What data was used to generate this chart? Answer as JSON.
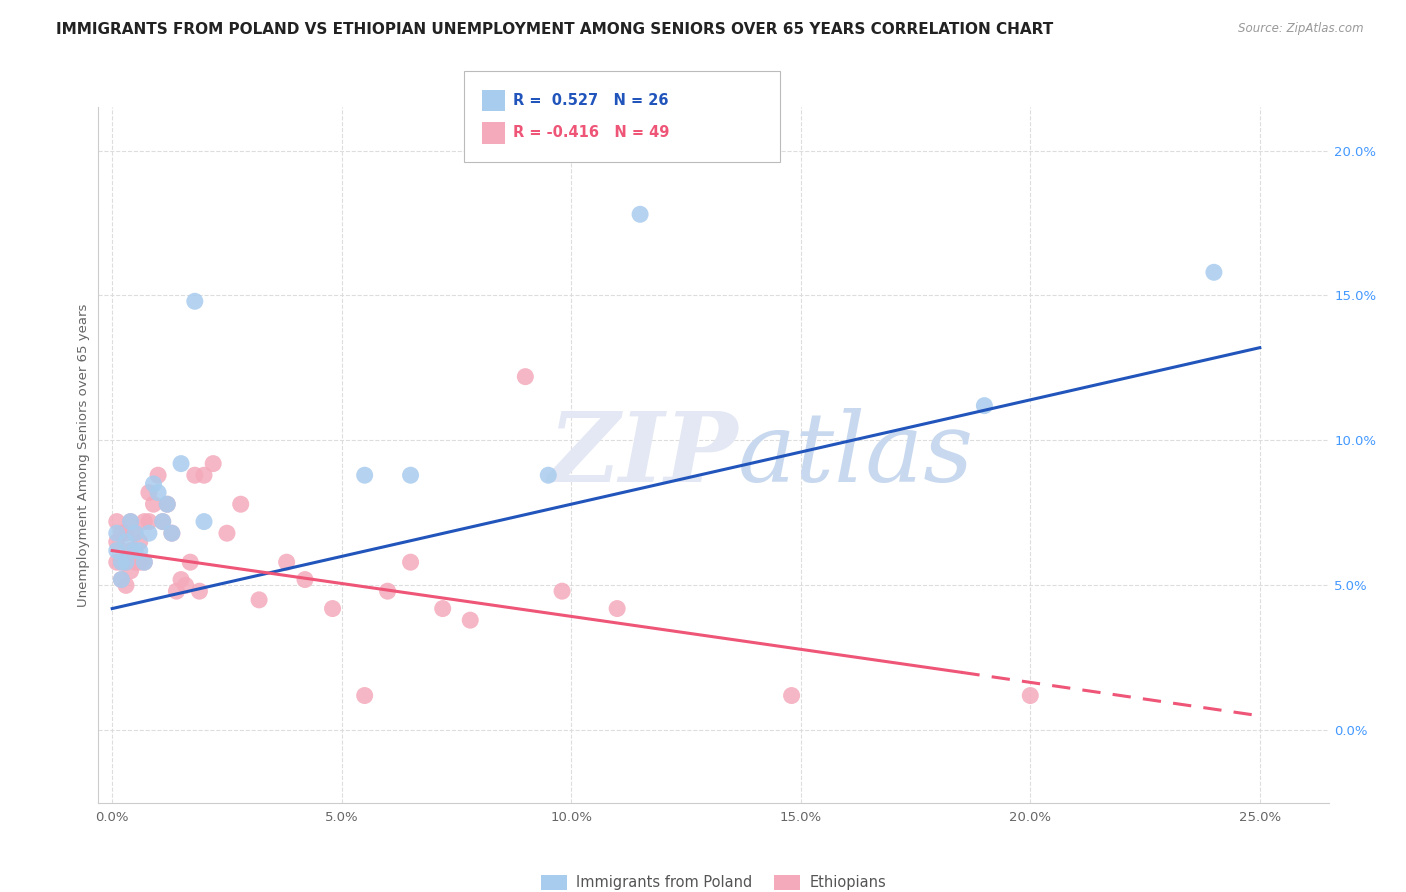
{
  "title": "IMMIGRANTS FROM POLAND VS ETHIOPIAN UNEMPLOYMENT AMONG SENIORS OVER 65 YEARS CORRELATION CHART",
  "source": "Source: ZipAtlas.com",
  "ylabel": "Unemployment Among Seniors over 65 years",
  "x_ticks": [
    0.0,
    0.05,
    0.1,
    0.15,
    0.2,
    0.25
  ],
  "x_tick_labels": [
    "0.0%",
    "5.0%",
    "10.0%",
    "15.0%",
    "20.0%",
    "25.0%"
  ],
  "y_ticks_right": [
    0.0,
    0.05,
    0.1,
    0.15,
    0.2
  ],
  "y_tick_labels_right": [
    "0.0%",
    "5.0%",
    "10.0%",
    "15.0%",
    "20.0%"
  ],
  "xlim": [
    -0.003,
    0.265
  ],
  "ylim": [
    -0.025,
    0.215
  ],
  "legend_label1": "Immigrants from Poland",
  "legend_label2": "Ethiopians",
  "R1": "0.527",
  "N1": "26",
  "R2": "-0.416",
  "N2": "49",
  "blue_color": "#A8CCEE",
  "pink_color": "#F4AABB",
  "blue_line_color": "#2255BB",
  "pink_line_color": "#EE5577",
  "watermark_color": "#E4E8F4",
  "background_color": "#FFFFFF",
  "grid_color": "#DDDDDD",
  "title_fontsize": 11,
  "blue_points_x": [
    0.001,
    0.001,
    0.002,
    0.002,
    0.003,
    0.003,
    0.004,
    0.005,
    0.005,
    0.006,
    0.007,
    0.008,
    0.009,
    0.01,
    0.011,
    0.012,
    0.013,
    0.015,
    0.018,
    0.02,
    0.055,
    0.065,
    0.095,
    0.115,
    0.19,
    0.24
  ],
  "blue_points_y": [
    0.068,
    0.062,
    0.058,
    0.052,
    0.065,
    0.058,
    0.072,
    0.068,
    0.062,
    0.062,
    0.058,
    0.068,
    0.085,
    0.082,
    0.072,
    0.078,
    0.068,
    0.092,
    0.148,
    0.072,
    0.088,
    0.088,
    0.088,
    0.178,
    0.112,
    0.158
  ],
  "pink_points_x": [
    0.001,
    0.001,
    0.001,
    0.002,
    0.002,
    0.002,
    0.003,
    0.003,
    0.003,
    0.004,
    0.004,
    0.004,
    0.005,
    0.005,
    0.006,
    0.006,
    0.007,
    0.007,
    0.008,
    0.008,
    0.009,
    0.01,
    0.011,
    0.012,
    0.013,
    0.014,
    0.015,
    0.016,
    0.017,
    0.018,
    0.019,
    0.02,
    0.022,
    0.025,
    0.028,
    0.032,
    0.038,
    0.042,
    0.048,
    0.055,
    0.06,
    0.065,
    0.072,
    0.078,
    0.09,
    0.098,
    0.11,
    0.148,
    0.2
  ],
  "pink_points_y": [
    0.072,
    0.065,
    0.058,
    0.068,
    0.058,
    0.052,
    0.068,
    0.058,
    0.05,
    0.072,
    0.062,
    0.055,
    0.068,
    0.058,
    0.065,
    0.058,
    0.072,
    0.058,
    0.082,
    0.072,
    0.078,
    0.088,
    0.072,
    0.078,
    0.068,
    0.048,
    0.052,
    0.05,
    0.058,
    0.088,
    0.048,
    0.088,
    0.092,
    0.068,
    0.078,
    0.045,
    0.058,
    0.052,
    0.042,
    0.012,
    0.048,
    0.058,
    0.042,
    0.038,
    0.122,
    0.048,
    0.042,
    0.012,
    0.012
  ],
  "blue_line_x0": 0.0,
  "blue_line_y0": 0.042,
  "blue_line_x1": 0.25,
  "blue_line_y1": 0.132,
  "pink_line_x0": 0.0,
  "pink_line_y0": 0.062,
  "pink_line_solid_x1": 0.185,
  "pink_line_solid_y1": 0.02,
  "pink_line_x1": 0.25,
  "pink_line_y1": 0.005
}
